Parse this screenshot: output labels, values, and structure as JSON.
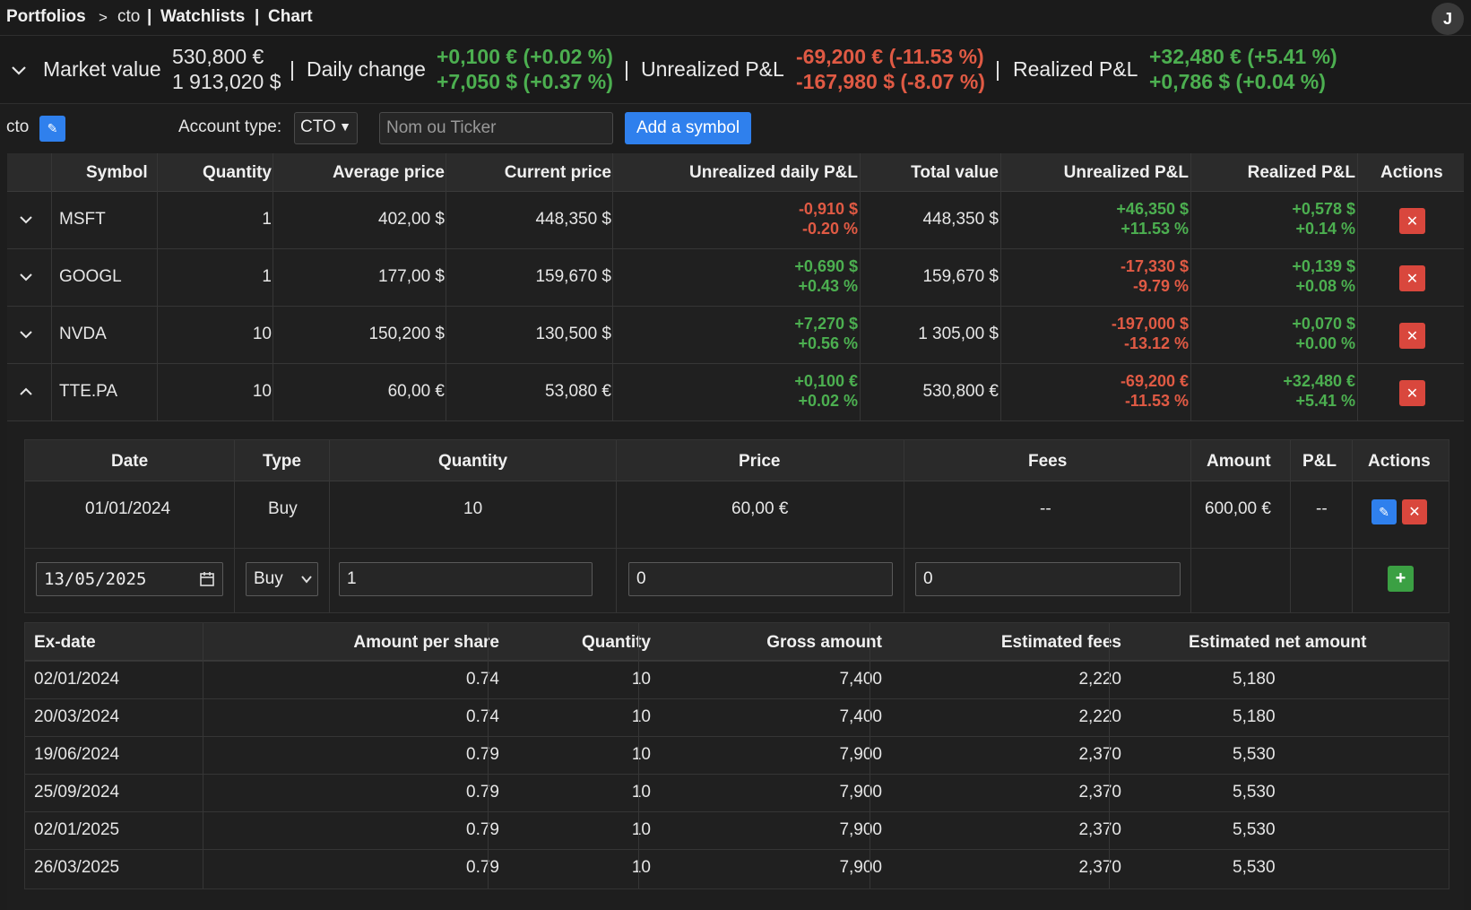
{
  "nav": {
    "portfolios": "Portfolios",
    "sep1": ">",
    "current": "cto",
    "sep2": "|",
    "watchlists": "Watchlists",
    "sep3": "|",
    "chart": "Chart",
    "avatar": "J"
  },
  "summary": {
    "market_value_label": "Market value",
    "market_value_eur": "530,800 €",
    "market_value_usd": "1 913,020 $",
    "sep": "|",
    "daily_change_label": "Daily change",
    "daily_change_eur": "+0,100 € (+0.02 %)",
    "daily_change_usd": "+7,050 $ (+0.37 %)",
    "unrealized_label": "Unrealized P&L",
    "unrealized_eur": "-69,200 € (-11.53 %)",
    "unrealized_usd": "-167,980 $ (-8.07 %)",
    "realized_label": "Realized P&L",
    "realized_eur": "+32,480 € (+5.41 %)",
    "realized_usd": "+0,786 $ (+0.04 %)"
  },
  "toolbar": {
    "portfolio_name": "cto",
    "edit_icon": "✎",
    "account_type_label": "Account type:",
    "account_type_value": "CTO",
    "search_placeholder": "Nom ou Ticker",
    "add_symbol_label": "Add a symbol"
  },
  "table": {
    "headers": [
      "Symbol",
      "Quantity",
      "Average price",
      "Current price",
      "Unrealized daily P&L",
      "Total value",
      "Unrealized P&L",
      "Realized P&L",
      "Actions"
    ],
    "rows": [
      {
        "symbol": "MSFT",
        "quantity": "1",
        "avg": "402,00 $",
        "cur": "448,350 $",
        "daily_a": "-0,910 $",
        "daily_b": "-0.20 %",
        "total": "448,350 $",
        "unr_a": "+46,350 $",
        "unr_b": "+11.53 %",
        "real_a": "+0,578 $",
        "real_b": "+0.14 %"
      },
      {
        "symbol": "GOOGL",
        "quantity": "1",
        "avg": "177,00 $",
        "cur": "159,670 $",
        "daily_a": "+0,690 $",
        "daily_b": "+0.43 %",
        "total": "159,670 $",
        "unr_a": "-17,330 $",
        "unr_b": "-9.79 %",
        "real_a": "+0,139 $",
        "real_b": "+0.08 %"
      },
      {
        "symbol": "NVDA",
        "quantity": "10",
        "avg": "150,200 $",
        "cur": "130,500 $",
        "daily_a": "+7,270 $",
        "daily_b": "+0.56 %",
        "total": "1 305,00 $",
        "unr_a": "-197,000 $",
        "unr_b": "-13.12 %",
        "real_a": "+0,070 $",
        "real_b": "+0.00 %"
      },
      {
        "symbol": "TTE.PA",
        "quantity": "10",
        "avg": "60,00 €",
        "cur": "53,080 €",
        "daily_a": "+0,100 €",
        "daily_b": "+0.02 %",
        "total": "530,800 €",
        "unr_a": "-69,200 €",
        "unr_b": "-11.53 %",
        "real_a": "+32,480 €",
        "real_b": "+5.41 %"
      }
    ],
    "delete_icon": "✕"
  },
  "transactions": {
    "headers": [
      "Date",
      "Type",
      "Quantity",
      "Price",
      "Fees",
      "Amount",
      "P&L",
      "Actions"
    ],
    "row": {
      "date": "01/01/2024",
      "type": "Buy",
      "quantity": "10",
      "price": "60,00 €",
      "fees": "--",
      "amount": "600,00 €",
      "pnl": "--"
    },
    "form": {
      "date": "13/05/2025",
      "type": "Buy",
      "quantity": "1",
      "price": "0",
      "fees": "0",
      "add_icon": "+"
    }
  },
  "dividends": {
    "headers": [
      "Ex-date",
      "Amount per share",
      "Quantity",
      "Gross amount",
      "Estimated fees",
      "Estimated net amount"
    ],
    "rows": [
      [
        "02/01/2024",
        "0.74",
        "10",
        "7,400",
        "2,220",
        "5,180"
      ],
      [
        "20/03/2024",
        "0.74",
        "10",
        "7,400",
        "2,220",
        "5,180"
      ],
      [
        "19/06/2024",
        "0.79",
        "10",
        "7,900",
        "2,370",
        "5,530"
      ],
      [
        "25/09/2024",
        "0.79",
        "10",
        "7,900",
        "2,370",
        "5,530"
      ],
      [
        "02/01/2025",
        "0.79",
        "10",
        "7,900",
        "2,370",
        "5,530"
      ],
      [
        "26/03/2025",
        "0.79",
        "10",
        "7,900",
        "2,370",
        "5,530"
      ]
    ]
  }
}
